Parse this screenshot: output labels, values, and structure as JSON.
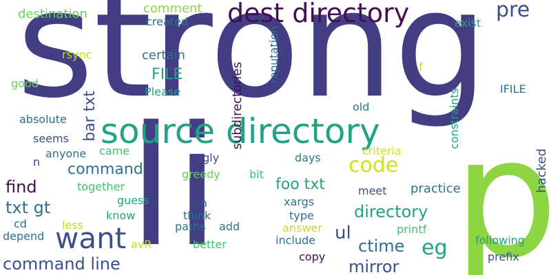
{
  "words": [
    {
      "text": "strong",
      "color": "#433d84"
    },
    {
      "text": "li",
      "color": "#433d84"
    },
    {
      "text": "p",
      "color": "#8ed544"
    },
    {
      "text": "source directory",
      "color": "#22a184"
    },
    {
      "text": "dest directory",
      "color": "#440d56"
    },
    {
      "text": "want",
      "color": "#3b4f8a"
    },
    {
      "text": "code",
      "color": "#cfe11c"
    },
    {
      "text": "pre",
      "color": "#3b4f8a"
    },
    {
      "text": "command line",
      "color": "#3b4f8a"
    },
    {
      "text": "foo txt",
      "color": "#22a184"
    },
    {
      "text": "directory",
      "color": "#22a184"
    },
    {
      "text": "eg",
      "color": "#22a184"
    },
    {
      "text": "ctime",
      "color": "#2c728e"
    },
    {
      "text": "mirror",
      "color": "#3b4f8a"
    },
    {
      "text": "ul",
      "color": "#3b4f8a"
    },
    {
      "text": "command",
      "color": "#2c728e"
    },
    {
      "text": "find",
      "color": "#440d56"
    },
    {
      "text": "txt gt",
      "color": "#2c728e"
    },
    {
      "text": "FILE",
      "color": "#22a184"
    },
    {
      "text": "bar txt",
      "color": "#3b4f8a"
    },
    {
      "text": "destination",
      "color": "#6cce59"
    },
    {
      "text": "comment",
      "color": "#8ed544"
    },
    {
      "text": "created",
      "color": "#2c728e"
    },
    {
      "text": "exist",
      "color": "#22a184"
    },
    {
      "text": "rsync",
      "color": "#bddf26"
    },
    {
      "text": "certain",
      "color": "#2c728e"
    },
    {
      "text": "good",
      "color": "#6cce59"
    },
    {
      "text": "Please",
      "color": "#22a184"
    },
    {
      "text": "absolute",
      "color": "#2c728e"
    },
    {
      "text": "seems",
      "color": "#3b4f8a"
    },
    {
      "text": "anyone",
      "color": "#2c728e"
    },
    {
      "text": "came",
      "color": "#44bf70"
    },
    {
      "text": "n",
      "color": "#3b4f8a"
    },
    {
      "text": "together",
      "color": "#44bf70"
    },
    {
      "text": "guess",
      "color": "#22a184"
    },
    {
      "text": "know",
      "color": "#22a184"
    },
    {
      "text": "less",
      "color": "#bddf26"
    },
    {
      "text": "cd",
      "color": "#2c728e"
    },
    {
      "text": "depend",
      "color": "#2c728e"
    },
    {
      "text": "avR",
      "color": "#bddf26"
    },
    {
      "text": "better",
      "color": "#44bf70"
    },
    {
      "text": "paths",
      "color": "#2c728e"
    },
    {
      "text": "add",
      "color": "#2c728e"
    },
    {
      "text": "run",
      "color": "#3b4f8a"
    },
    {
      "text": "think",
      "color": "#2c728e"
    },
    {
      "text": "ugly",
      "color": "#3b4f8a"
    },
    {
      "text": "greedy",
      "color": "#6cce59"
    },
    {
      "text": "bit",
      "color": "#44bf70"
    },
    {
      "text": "xargs",
      "color": "#2c728e"
    },
    {
      "text": "type",
      "color": "#2c728e"
    },
    {
      "text": "answer",
      "color": "#bddf26"
    },
    {
      "text": "include",
      "color": "#2c728e"
    },
    {
      "text": "copy",
      "color": "#440d56"
    },
    {
      "text": "days",
      "color": "#2c728e"
    },
    {
      "text": "criteria",
      "color": "#cfe11c"
    },
    {
      "text": "meet",
      "color": "#3b4f8a"
    },
    {
      "text": "practice",
      "color": "#2c728e"
    },
    {
      "text": "printf",
      "color": "#44bf70"
    },
    {
      "text": "following",
      "color": "#22a184"
    },
    {
      "text": "prefix",
      "color": "#3b4f8a"
    },
    {
      "text": "old",
      "color": "#2c728e"
    },
    {
      "text": "IFILE",
      "color": "#2c728e"
    },
    {
      "text": "f",
      "color": "#bddf26"
    },
    {
      "text": "subdirectories",
      "color": "#440d56"
    },
    {
      "text": "reputation",
      "color": "#2c728e"
    },
    {
      "text": "constraints",
      "color": "#22a184"
    },
    {
      "text": "hacked",
      "color": "#3b4f8a"
    }
  ]
}
